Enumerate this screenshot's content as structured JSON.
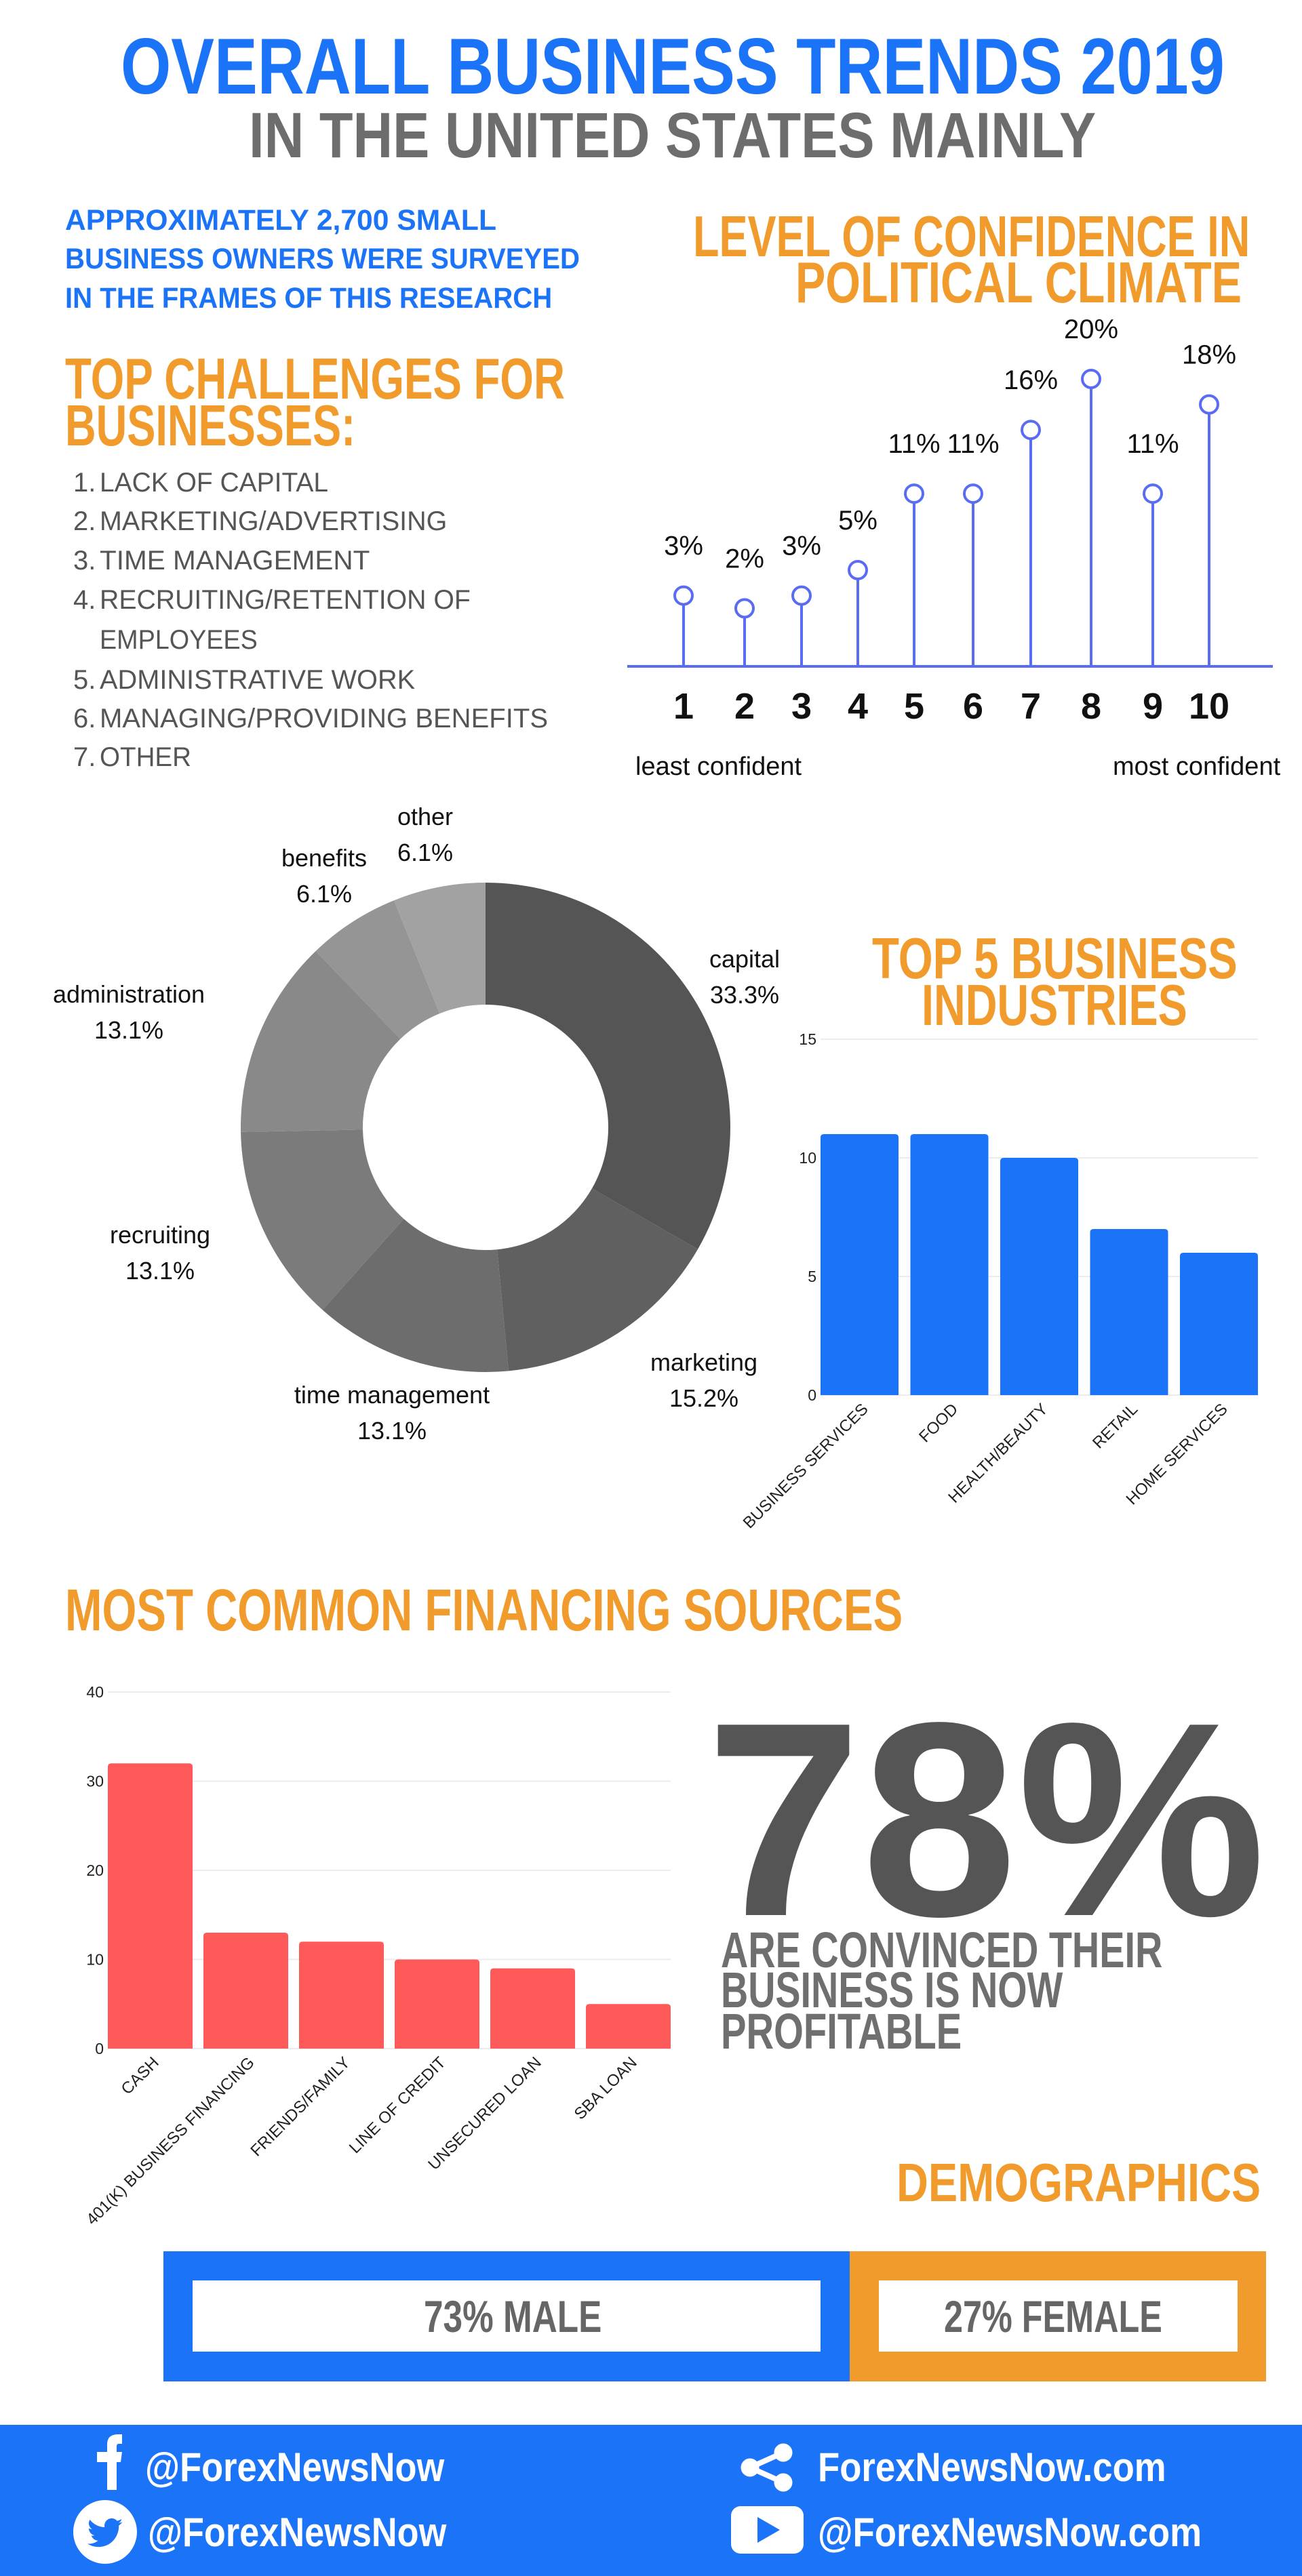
{
  "header": {
    "title": "OVERALL BUSINESS TRENDS 2019",
    "subtitle": "IN THE UNITED STATES MAINLY"
  },
  "intro": {
    "lines": [
      "APPROXIMATELY 2,700 SMALL",
      "BUSINESS OWNERS WERE SURVEYED",
      "IN THE FRAMES OF THIS RESEARCH"
    ]
  },
  "challenges": {
    "heading_lines": [
      "TOP CHALLENGES FOR",
      "BUSINESSES:"
    ],
    "items": [
      {
        "num": "1.",
        "lines": [
          "LACK OF CAPITAL"
        ]
      },
      {
        "num": "2.",
        "lines": [
          "MARKETING/ADVERTISING"
        ]
      },
      {
        "num": "3.",
        "lines": [
          "TIME MANAGEMENT"
        ]
      },
      {
        "num": "4.",
        "lines": [
          "RECRUITING/RETENTION OF",
          "EMPLOYEES"
        ]
      },
      {
        "num": "5.",
        "lines": [
          "ADMINISTRATIVE WORK"
        ]
      },
      {
        "num": "6.",
        "lines": [
          "MANAGING/PROVIDING BENEFITS"
        ]
      },
      {
        "num": "7.",
        "lines": [
          "OTHER"
        ]
      }
    ]
  },
  "colors": {
    "blue": "#1b73f7",
    "orange": "#f19b2c",
    "gray": "#6d6d6d",
    "lollipop": "#5a6cf2",
    "financing_bar": "#ff5a5a"
  },
  "chart_data": [
    {
      "type": "lollipop",
      "title_lines": [
        "LEVEL OF CONFIDENCE IN",
        "POLITICAL CLIMATE"
      ],
      "categories": [
        "1",
        "2",
        "3",
        "4",
        "5",
        "6",
        "7",
        "8",
        "9",
        "10"
      ],
      "values": [
        3,
        2,
        3,
        5,
        11,
        11,
        16,
        20,
        11,
        18
      ],
      "value_labels": [
        "3%",
        "2%",
        "3%",
        "5%",
        "11%",
        "11%",
        "16%",
        "20%",
        "11%",
        "18%"
      ],
      "axis_left_label": "least confident",
      "axis_right_label": "most confident"
    },
    {
      "type": "pie",
      "donut": true,
      "slices": [
        {
          "label": "capital",
          "value": 33.3,
          "text": "33.3%",
          "color": "#555555"
        },
        {
          "label": "marketing",
          "value": 15.2,
          "text": "15.2%",
          "color": "#606060"
        },
        {
          "label": "time management",
          "value": 13.1,
          "text": "13.1%",
          "color": "#6d6d6d"
        },
        {
          "label": "recruiting",
          "value": 13.1,
          "text": "13.1%",
          "color": "#7b7b7b"
        },
        {
          "label": "administration",
          "value": 13.1,
          "text": "13.1%",
          "color": "#898989"
        },
        {
          "label": "benefits",
          "value": 6.1,
          "text": "6.1%",
          "color": "#959595"
        },
        {
          "label": "other",
          "value": 6.1,
          "text": "6.1%",
          "color": "#a2a2a2"
        }
      ]
    },
    {
      "type": "bar",
      "title_lines": [
        "TOP 5 BUSINESS",
        "INDUSTRIES"
      ],
      "categories": [
        "BUSINESS SERVICES",
        "FOOD",
        "HEALTH/BEAUTY",
        "RETAIL",
        "HOME SERVICES"
      ],
      "values": [
        11,
        11,
        10,
        7,
        6
      ],
      "ylim": [
        0,
        15
      ],
      "yticks": [
        0,
        5,
        10,
        15
      ],
      "color": "#1b73f7",
      "grid": true
    },
    {
      "type": "bar",
      "title": "MOST COMMON FINANCING SOURCES",
      "categories": [
        "CASH",
        "401(K) BUSINESS FINANCING",
        "FRIENDS/FAMILY",
        "LINE OF CREDIT",
        "UNSECURED LOAN",
        "SBA LOAN"
      ],
      "values": [
        32,
        13,
        12,
        10,
        9,
        5
      ],
      "ylim": [
        0,
        40
      ],
      "yticks": [
        0,
        10,
        20,
        30,
        40
      ],
      "color": "#ff5a5a",
      "grid": true
    }
  ],
  "profit": {
    "value": "78%",
    "caption_lines": [
      "ARE CONVINCED THEIR",
      "BUSINESS IS NOW",
      "PROFITABLE"
    ]
  },
  "demographics": {
    "title": "DEMOGRAPHICS",
    "male": "73% MALE",
    "female": "27% FEMALE",
    "male_share": 73,
    "female_share": 27
  },
  "footer": {
    "facebook": "@ForexNewsNow",
    "twitter": "@ForexNewsNow",
    "website": "ForexNewsNow.com",
    "youtube": "@ForexNewsNow.com",
    "icons": [
      "facebook-icon",
      "twitter-icon",
      "share-icon",
      "youtube-icon"
    ]
  }
}
